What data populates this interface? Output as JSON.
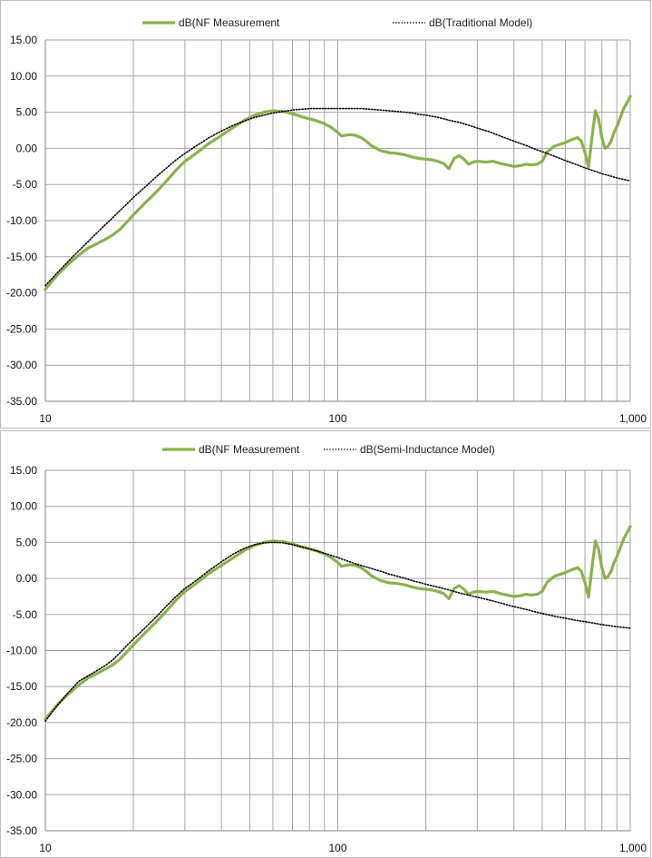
{
  "chart_data": [
    {
      "type": "line",
      "xscale": "log",
      "xlim": [
        10,
        1000
      ],
      "ylim": [
        -35,
        15
      ],
      "grid": true,
      "legend": "top",
      "x_ticks": [
        "10",
        "100",
        "1,000"
      ],
      "y_ticks": [
        "15.00",
        "10.00",
        "5.00",
        "0.00",
        "-5.00",
        "-10.00",
        "-15.00",
        "-20.00",
        "-25.00",
        "-30.00",
        "-35.00"
      ],
      "series": [
        {
          "name": "dB(NF Measurement",
          "color": "#8cb04f",
          "style": "solid",
          "x": [
            10,
            11,
            12,
            13,
            14,
            15,
            16,
            17,
            18,
            19,
            20,
            22,
            24,
            26,
            28,
            30,
            33,
            36,
            40,
            44,
            48,
            52,
            56,
            60,
            65,
            70,
            75,
            80,
            85,
            90,
            95,
            100,
            103,
            106,
            110,
            115,
            120,
            125,
            130,
            140,
            150,
            160,
            170,
            180,
            190,
            200,
            210,
            220,
            230,
            240,
            250,
            260,
            270,
            280,
            290,
            300,
            320,
            340,
            360,
            380,
            400,
            420,
            440,
            460,
            480,
            500,
            520,
            550,
            580,
            600,
            630,
            660,
            680,
            700,
            720,
            740,
            760,
            780,
            800,
            820,
            840,
            860,
            880,
            900,
            920,
            950,
            980,
            1000
          ],
          "values": [
            -19.5,
            -17.5,
            -16.0,
            -14.8,
            -13.8,
            -13.2,
            -12.6,
            -12.0,
            -11.2,
            -10.2,
            -9.2,
            -7.5,
            -6.0,
            -4.5,
            -3.0,
            -1.8,
            -0.6,
            0.6,
            1.8,
            2.9,
            3.9,
            4.6,
            5.0,
            5.2,
            5.1,
            4.8,
            4.4,
            4.1,
            3.8,
            3.4,
            2.9,
            2.2,
            1.7,
            1.8,
            1.9,
            1.8,
            1.5,
            1.0,
            0.4,
            -0.3,
            -0.6,
            -0.7,
            -0.9,
            -1.2,
            -1.4,
            -1.5,
            -1.6,
            -1.8,
            -2.1,
            -2.8,
            -1.4,
            -1.0,
            -1.5,
            -2.2,
            -1.9,
            -1.8,
            -1.9,
            -1.8,
            -2.1,
            -2.3,
            -2.5,
            -2.4,
            -2.2,
            -2.3,
            -2.2,
            -1.8,
            -0.5,
            0.3,
            0.6,
            0.8,
            1.2,
            1.5,
            1.0,
            -0.5,
            -2.6,
            1.5,
            5.2,
            4.0,
            1.5,
            0.0,
            0.3,
            1.0,
            2.2,
            3.0,
            4.0,
            5.5,
            6.5,
            7.2
          ]
        },
        {
          "name": "dB(Traditional Model)",
          "color": "#000000",
          "style": "dotted",
          "x": [
            10,
            11,
            12,
            13,
            14,
            15,
            16,
            17,
            18,
            19,
            20,
            22,
            24,
            26,
            28,
            30,
            33,
            36,
            40,
            44,
            48,
            52,
            56,
            60,
            65,
            70,
            75,
            80,
            85,
            90,
            95,
            100,
            110,
            120,
            130,
            140,
            150,
            160,
            170,
            180,
            190,
            200,
            220,
            240,
            260,
            280,
            300,
            330,
            360,
            400,
            440,
            480,
            520,
            560,
            600,
            650,
            700,
            750,
            800,
            850,
            900,
            950,
            1000
          ],
          "values": [
            -19.0,
            -17.2,
            -15.6,
            -14.2,
            -12.9,
            -11.7,
            -10.6,
            -9.6,
            -8.6,
            -7.7,
            -6.8,
            -5.3,
            -3.9,
            -2.7,
            -1.6,
            -0.7,
            0.4,
            1.4,
            2.4,
            3.2,
            3.8,
            4.3,
            4.6,
            4.9,
            5.1,
            5.3,
            5.4,
            5.5,
            5.5,
            5.5,
            5.5,
            5.5,
            5.5,
            5.5,
            5.4,
            5.3,
            5.2,
            5.1,
            5.0,
            4.9,
            4.7,
            4.6,
            4.3,
            3.9,
            3.6,
            3.2,
            2.8,
            2.3,
            1.7,
            1.0,
            0.4,
            -0.2,
            -0.7,
            -1.2,
            -1.7,
            -2.2,
            -2.7,
            -3.1,
            -3.5,
            -3.8,
            -4.1,
            -4.3,
            -4.5
          ]
        }
      ]
    },
    {
      "type": "line",
      "xscale": "log",
      "xlim": [
        10,
        1000
      ],
      "ylim": [
        -35,
        15
      ],
      "grid": true,
      "legend": "top",
      "x_ticks": [
        "10",
        "100",
        "1,000"
      ],
      "y_ticks": [
        "15.00",
        "10.00",
        "5.00",
        "0.00",
        "-5.00",
        "-10.00",
        "-15.00",
        "-20.00",
        "-25.00",
        "-30.00",
        "-35.00"
      ],
      "series": [
        {
          "name": "dB(NF Measurement",
          "color": "#8cb04f",
          "style": "solid",
          "x": [
            10,
            11,
            12,
            13,
            14,
            15,
            16,
            17,
            18,
            19,
            20,
            22,
            24,
            26,
            28,
            30,
            33,
            36,
            40,
            44,
            48,
            52,
            56,
            60,
            65,
            70,
            75,
            80,
            85,
            90,
            95,
            100,
            103,
            106,
            110,
            115,
            120,
            125,
            130,
            140,
            150,
            160,
            170,
            180,
            190,
            200,
            210,
            220,
            230,
            240,
            250,
            260,
            270,
            280,
            290,
            300,
            320,
            340,
            360,
            380,
            400,
            420,
            440,
            460,
            480,
            500,
            520,
            550,
            580,
            600,
            630,
            660,
            680,
            700,
            720,
            740,
            760,
            780,
            800,
            820,
            840,
            860,
            880,
            900,
            920,
            950,
            980,
            1000
          ],
          "values": [
            -19.5,
            -17.5,
            -16.0,
            -14.8,
            -13.8,
            -13.2,
            -12.6,
            -12.0,
            -11.2,
            -10.2,
            -9.2,
            -7.5,
            -6.0,
            -4.5,
            -3.0,
            -1.8,
            -0.6,
            0.6,
            1.8,
            2.9,
            3.9,
            4.6,
            5.0,
            5.2,
            5.1,
            4.8,
            4.4,
            4.1,
            3.8,
            3.4,
            2.9,
            2.2,
            1.7,
            1.8,
            1.9,
            1.8,
            1.5,
            1.0,
            0.4,
            -0.3,
            -0.6,
            -0.7,
            -0.9,
            -1.2,
            -1.4,
            -1.5,
            -1.6,
            -1.8,
            -2.1,
            -2.8,
            -1.4,
            -1.0,
            -1.5,
            -2.2,
            -1.9,
            -1.8,
            -1.9,
            -1.8,
            -2.1,
            -2.3,
            -2.5,
            -2.4,
            -2.2,
            -2.3,
            -2.2,
            -1.8,
            -0.5,
            0.3,
            0.6,
            0.8,
            1.2,
            1.5,
            1.0,
            -0.5,
            -2.6,
            1.5,
            5.2,
            4.0,
            1.5,
            0.0,
            0.3,
            1.0,
            2.2,
            3.0,
            4.0,
            5.5,
            6.5,
            7.2
          ]
        },
        {
          "name": "dB(Semi-Inductance Model)",
          "color": "#000000",
          "style": "dotted",
          "x": [
            10,
            11,
            12,
            13,
            14,
            15,
            16,
            17,
            18,
            19,
            20,
            22,
            24,
            26,
            28,
            30,
            33,
            36,
            40,
            44,
            48,
            52,
            56,
            60,
            65,
            70,
            75,
            80,
            85,
            90,
            95,
            100,
            110,
            120,
            130,
            140,
            150,
            160,
            170,
            180,
            190,
            200,
            220,
            240,
            260,
            280,
            300,
            330,
            360,
            400,
            440,
            480,
            520,
            560,
            600,
            650,
            700,
            750,
            800,
            850,
            900,
            950,
            1000
          ],
          "values": [
            -19.8,
            -17.6,
            -15.8,
            -14.3,
            -13.5,
            -12.8,
            -12.1,
            -11.3,
            -10.3,
            -9.3,
            -8.4,
            -6.8,
            -5.3,
            -3.8,
            -2.5,
            -1.4,
            -0.2,
            1.0,
            2.3,
            3.4,
            4.2,
            4.7,
            4.95,
            5.0,
            4.95,
            4.7,
            4.4,
            4.1,
            3.8,
            3.5,
            3.2,
            2.9,
            2.3,
            1.8,
            1.4,
            1.0,
            0.6,
            0.3,
            0.0,
            -0.3,
            -0.55,
            -0.8,
            -1.2,
            -1.6,
            -2.0,
            -2.3,
            -2.6,
            -3.0,
            -3.4,
            -3.9,
            -4.3,
            -4.7,
            -5.0,
            -5.3,
            -5.5,
            -5.8,
            -6.0,
            -6.2,
            -6.4,
            -6.55,
            -6.7,
            -6.8,
            -6.9
          ]
        }
      ]
    }
  ]
}
